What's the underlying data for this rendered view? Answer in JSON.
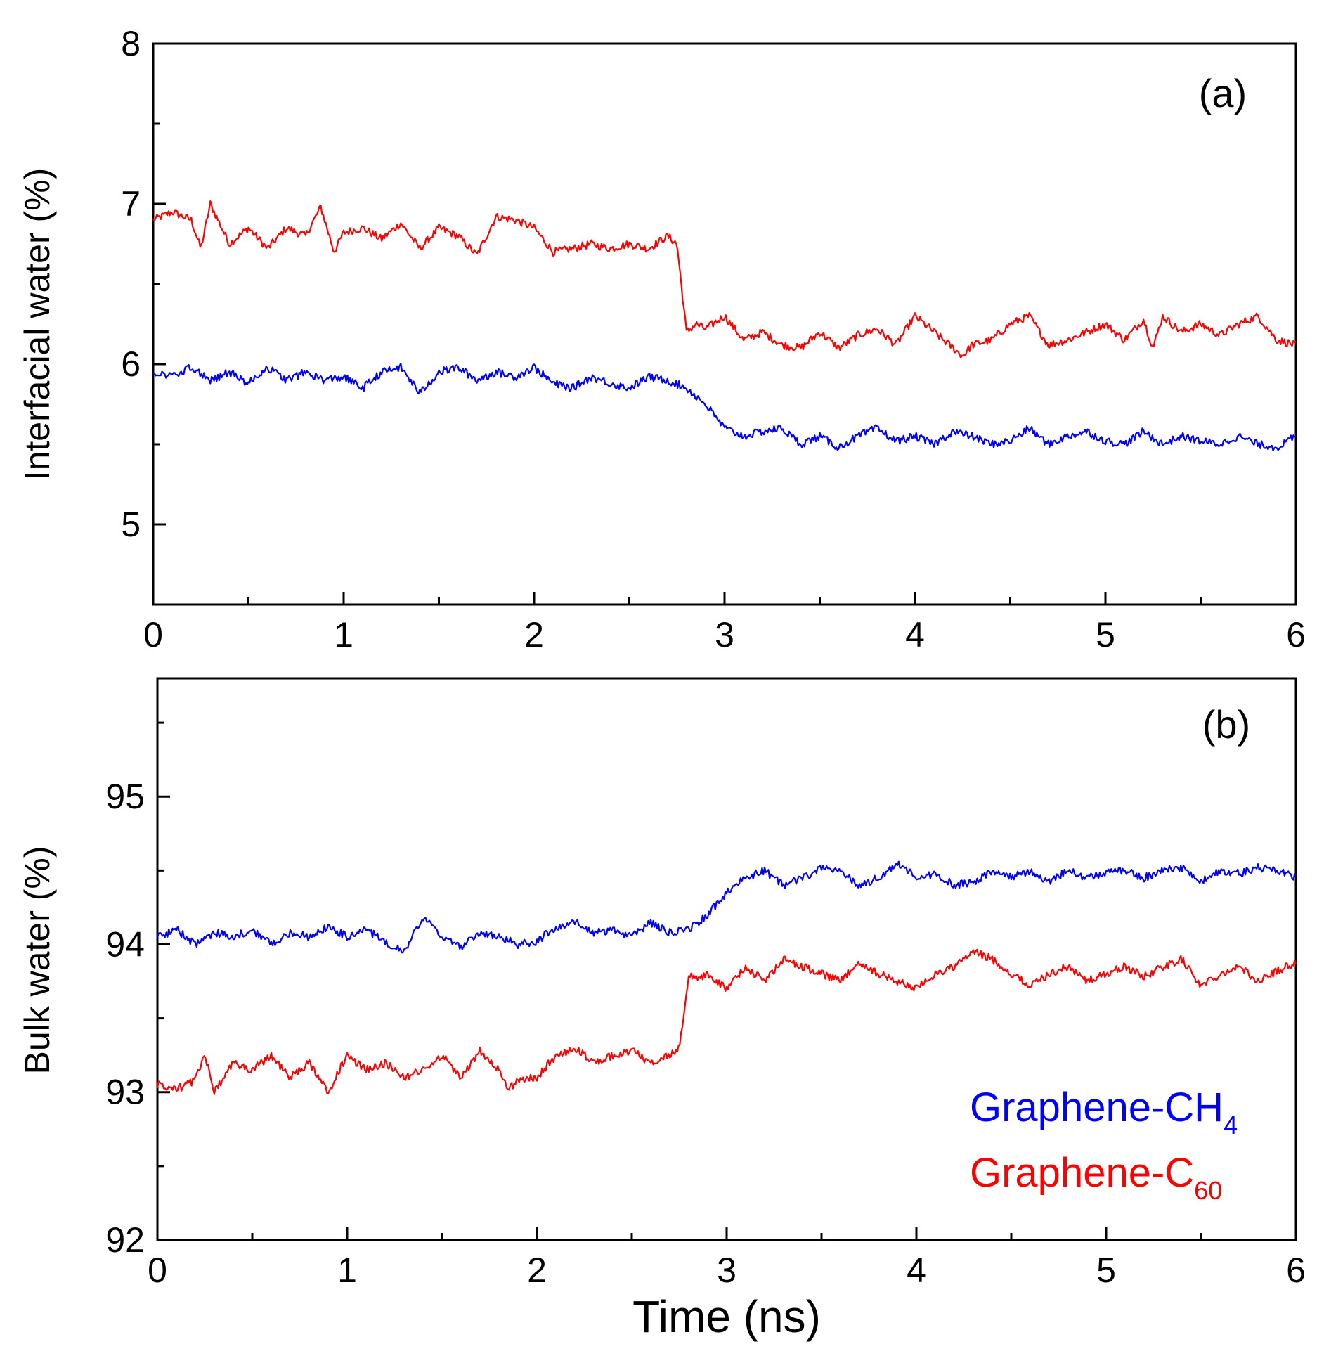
{
  "chart_data": [
    {
      "id": "a",
      "type": "line",
      "panel_label": "(a)",
      "ylabel": "Interfacial water (%)",
      "xlabel": "",
      "xlim": [
        0,
        6
      ],
      "ylim": [
        4.5,
        8
      ],
      "xticks": [
        "0",
        "1",
        "2",
        "3",
        "4",
        "5",
        "6"
      ],
      "yticks": [
        "5",
        "6",
        "7",
        "8"
      ],
      "ytick_values": [
        5,
        6,
        7,
        8
      ],
      "series": [
        {
          "name": "Graphene-C60",
          "color": "#ff0000",
          "x": [
            0,
            0.1,
            0.2,
            0.25,
            0.3,
            0.4,
            0.5,
            0.6,
            0.7,
            0.8,
            0.88,
            0.95,
            1.0,
            1.1,
            1.2,
            1.3,
            1.4,
            1.5,
            1.6,
            1.7,
            1.8,
            1.9,
            2.0,
            2.1,
            2.2,
            2.3,
            2.4,
            2.5,
            2.6,
            2.7,
            2.75,
            2.8,
            2.85,
            2.9,
            3.0,
            3.1,
            3.2,
            3.3,
            3.4,
            3.5,
            3.6,
            3.7,
            3.8,
            3.9,
            4.0,
            4.1,
            4.2,
            4.25,
            4.3,
            4.4,
            4.5,
            4.6,
            4.7,
            4.8,
            4.9,
            5.0,
            5.1,
            5.2,
            5.25,
            5.3,
            5.4,
            5.5,
            5.6,
            5.7,
            5.8,
            5.9,
            6.0
          ],
          "y": [
            6.9,
            6.95,
            6.9,
            6.72,
            7.0,
            6.75,
            6.85,
            6.72,
            6.85,
            6.8,
            6.98,
            6.7,
            6.82,
            6.85,
            6.78,
            6.88,
            6.72,
            6.85,
            6.8,
            6.68,
            6.92,
            6.9,
            6.85,
            6.7,
            6.72,
            6.75,
            6.72,
            6.75,
            6.72,
            6.8,
            6.75,
            6.2,
            6.25,
            6.22,
            6.3,
            6.15,
            6.2,
            6.12,
            6.1,
            6.2,
            6.1,
            6.18,
            6.22,
            6.12,
            6.3,
            6.2,
            6.1,
            6.05,
            6.12,
            6.15,
            6.25,
            6.3,
            6.12,
            6.15,
            6.2,
            6.25,
            6.15,
            6.28,
            6.1,
            6.3,
            6.2,
            6.25,
            6.18,
            6.25,
            6.3,
            6.15,
            6.12
          ]
        },
        {
          "name": "Graphene-CH4",
          "color": "#0000ff",
          "x": [
            0,
            0.1,
            0.2,
            0.3,
            0.4,
            0.5,
            0.6,
            0.7,
            0.8,
            0.9,
            1.0,
            1.1,
            1.2,
            1.3,
            1.4,
            1.5,
            1.6,
            1.7,
            1.8,
            1.9,
            2.0,
            2.1,
            2.2,
            2.3,
            2.4,
            2.5,
            2.6,
            2.7,
            2.8,
            2.9,
            3.0,
            3.1,
            3.2,
            3.3,
            3.4,
            3.5,
            3.6,
            3.7,
            3.8,
            3.9,
            4.0,
            4.1,
            4.2,
            4.3,
            4.4,
            4.5,
            4.6,
            4.7,
            4.8,
            4.9,
            5.0,
            5.1,
            5.2,
            5.3,
            5.4,
            5.5,
            5.6,
            5.7,
            5.8,
            5.9,
            6.0
          ],
          "y": [
            5.95,
            5.92,
            5.98,
            5.9,
            5.95,
            5.88,
            5.98,
            5.9,
            5.95,
            5.9,
            5.92,
            5.85,
            5.95,
            5.98,
            5.82,
            5.95,
            5.98,
            5.9,
            5.95,
            5.92,
            5.98,
            5.88,
            5.85,
            5.92,
            5.88,
            5.85,
            5.92,
            5.9,
            5.85,
            5.75,
            5.6,
            5.55,
            5.58,
            5.6,
            5.5,
            5.55,
            5.48,
            5.55,
            5.6,
            5.52,
            5.55,
            5.5,
            5.58,
            5.55,
            5.5,
            5.52,
            5.6,
            5.5,
            5.55,
            5.58,
            5.52,
            5.5,
            5.58,
            5.5,
            5.55,
            5.52,
            5.5,
            5.55,
            5.5,
            5.48,
            5.55
          ]
        }
      ]
    },
    {
      "id": "b",
      "type": "line",
      "panel_label": "(b)",
      "ylabel": "Bulk water (%)",
      "xlabel": "Time (ns)",
      "xlim": [
        0,
        6
      ],
      "ylim": [
        92,
        95.8
      ],
      "xticks": [
        "0",
        "1",
        "2",
        "3",
        "4",
        "5",
        "6"
      ],
      "yticks": [
        "92",
        "93",
        "94",
        "95"
      ],
      "ytick_values": [
        92,
        93,
        94,
        95
      ],
      "series": [
        {
          "name": "Graphene-CH4",
          "color": "#0000ff",
          "x": [
            0,
            0.1,
            0.2,
            0.3,
            0.4,
            0.5,
            0.6,
            0.7,
            0.8,
            0.9,
            1.0,
            1.1,
            1.2,
            1.3,
            1.4,
            1.5,
            1.6,
            1.7,
            1.8,
            1.9,
            2.0,
            2.1,
            2.2,
            2.3,
            2.4,
            2.5,
            2.6,
            2.7,
            2.8,
            2.9,
            3.0,
            3.1,
            3.2,
            3.3,
            3.4,
            3.5,
            3.6,
            3.7,
            3.8,
            3.9,
            4.0,
            4.1,
            4.2,
            4.3,
            4.4,
            4.5,
            4.6,
            4.7,
            4.8,
            4.9,
            5.0,
            5.1,
            5.2,
            5.3,
            5.4,
            5.5,
            5.6,
            5.7,
            5.8,
            5.9,
            6.0
          ],
          "y": [
            94.05,
            94.1,
            94.0,
            94.08,
            94.05,
            94.1,
            94.0,
            94.08,
            94.05,
            94.12,
            94.05,
            94.1,
            94.02,
            93.95,
            94.18,
            94.05,
            93.98,
            94.08,
            94.05,
            94.0,
            94.02,
            94.12,
            94.15,
            94.08,
            94.1,
            94.05,
            94.15,
            94.08,
            94.1,
            94.2,
            94.35,
            94.45,
            94.5,
            94.4,
            94.45,
            94.52,
            94.5,
            94.4,
            94.45,
            94.55,
            94.45,
            94.48,
            94.4,
            94.42,
            94.5,
            94.45,
            94.5,
            94.42,
            94.5,
            94.45,
            94.48,
            94.5,
            94.45,
            94.5,
            94.52,
            94.42,
            94.5,
            94.48,
            94.52,
            94.5,
            94.45
          ]
        },
        {
          "name": "Graphene-C60",
          "color": "#ff0000",
          "x": [
            0,
            0.1,
            0.2,
            0.25,
            0.3,
            0.4,
            0.5,
            0.6,
            0.7,
            0.8,
            0.9,
            1.0,
            1.1,
            1.2,
            1.3,
            1.4,
            1.5,
            1.6,
            1.7,
            1.8,
            1.85,
            1.9,
            2.0,
            2.1,
            2.2,
            2.3,
            2.4,
            2.5,
            2.6,
            2.7,
            2.75,
            2.8,
            2.85,
            2.9,
            3.0,
            3.1,
            3.2,
            3.3,
            3.4,
            3.5,
            3.6,
            3.7,
            3.8,
            3.9,
            4.0,
            4.1,
            4.2,
            4.3,
            4.4,
            4.5,
            4.6,
            4.7,
            4.8,
            4.9,
            5.0,
            5.1,
            5.2,
            5.3,
            5.4,
            5.5,
            5.6,
            5.7,
            5.8,
            5.9,
            6.0
          ],
          "y": [
            93.05,
            93.02,
            93.08,
            93.25,
            93.0,
            93.2,
            93.15,
            93.25,
            93.1,
            93.2,
            93.0,
            93.25,
            93.15,
            93.2,
            93.1,
            93.15,
            93.25,
            93.1,
            93.28,
            93.15,
            93.02,
            93.08,
            93.1,
            93.25,
            93.3,
            93.2,
            93.25,
            93.28,
            93.2,
            93.25,
            93.3,
            93.8,
            93.75,
            93.8,
            93.7,
            93.85,
            93.75,
            93.9,
            93.85,
            93.8,
            93.75,
            93.88,
            93.8,
            93.75,
            93.7,
            93.8,
            93.85,
            93.95,
            93.9,
            93.8,
            93.72,
            93.8,
            93.85,
            93.75,
            93.8,
            93.85,
            93.78,
            93.85,
            93.9,
            93.72,
            93.8,
            93.85,
            93.75,
            93.82,
            93.88
          ]
        }
      ]
    }
  ],
  "legend": {
    "items": [
      {
        "base": "Graphene-CH",
        "sub": "4",
        "color": "#0000ff"
      },
      {
        "base": "Graphene-C",
        "sub": "60",
        "color": "#ff0000"
      }
    ]
  }
}
